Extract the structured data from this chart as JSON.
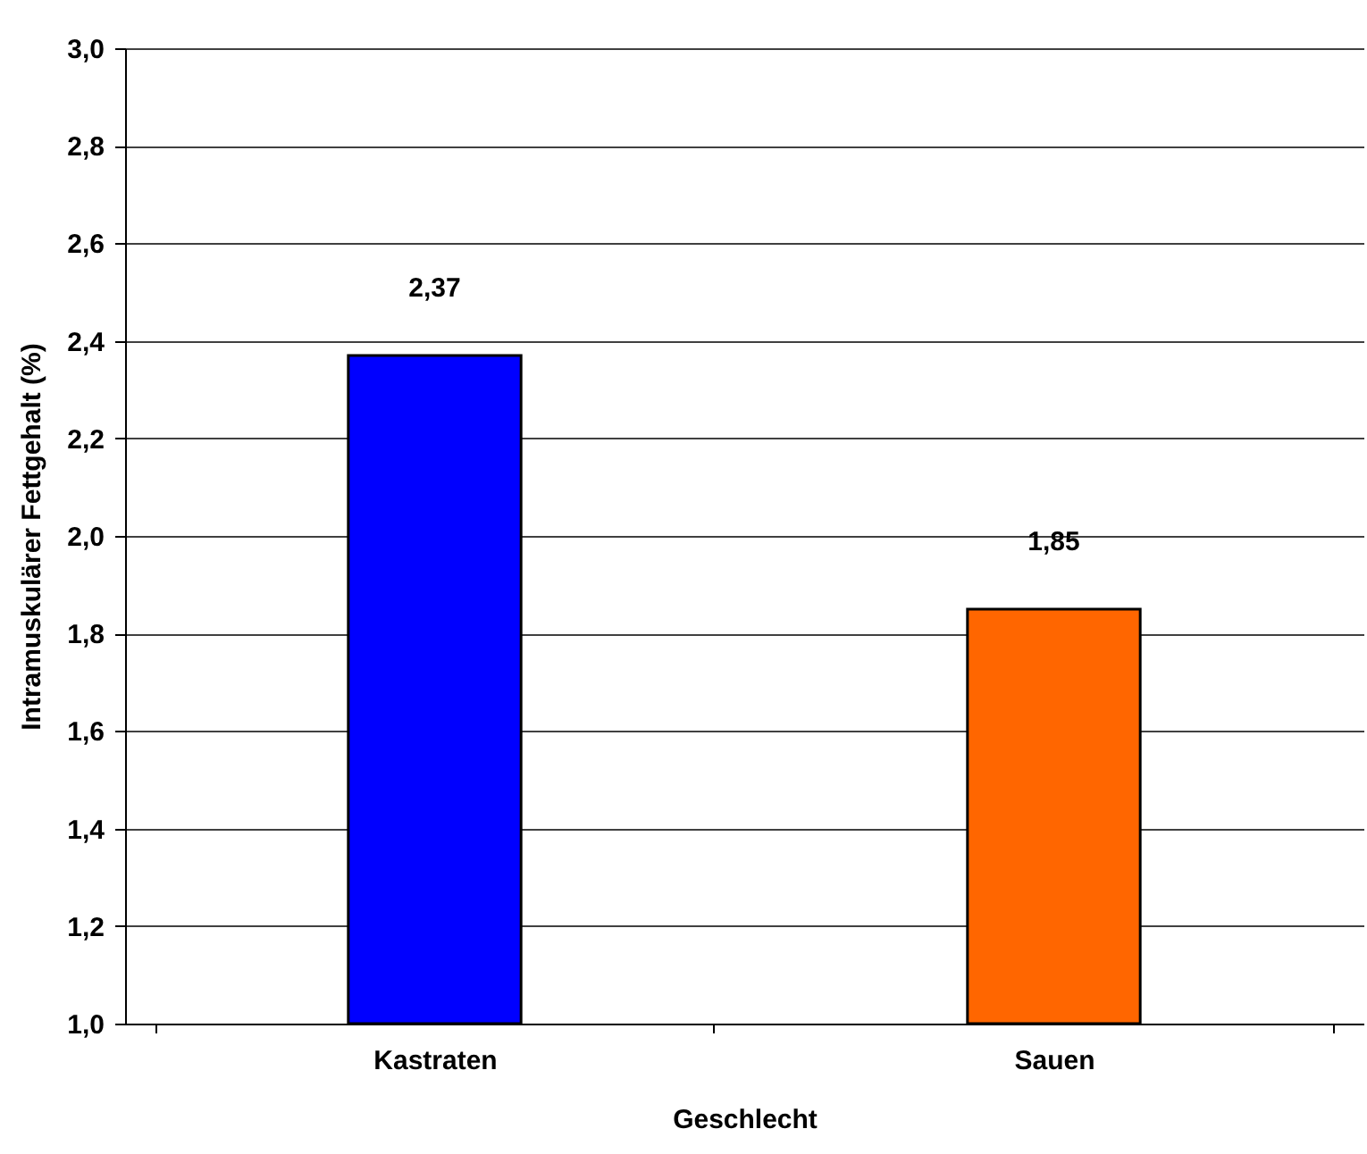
{
  "chart_data": {
    "type": "bar",
    "xlabel": "Geschlecht",
    "ylabel": "Intramuskulärer Fettgehalt (%)",
    "categories": [
      "Kastraten",
      "Sauen"
    ],
    "values": [
      2.37,
      1.85
    ],
    "colors": [
      "#0000ff",
      "#ff6600"
    ],
    "value_labels": [
      "2,37",
      "1,85"
    ],
    "ylim": [
      1.0,
      3.0
    ],
    "yticks": [
      {
        "value": 1.0,
        "label": "1,0"
      },
      {
        "value": 1.2,
        "label": "1,2"
      },
      {
        "value": 1.4,
        "label": "1,4"
      },
      {
        "value": 1.6,
        "label": "1,6"
      },
      {
        "value": 1.8,
        "label": "1,8"
      },
      {
        "value": 2.0,
        "label": "2,0"
      },
      {
        "value": 2.2,
        "label": "2,2"
      },
      {
        "value": 2.4,
        "label": "2,4"
      },
      {
        "value": 2.6,
        "label": "2,6"
      },
      {
        "value": 2.8,
        "label": "2,8"
      },
      {
        "value": 3.0,
        "label": "3,0"
      }
    ],
    "grid": "y"
  }
}
